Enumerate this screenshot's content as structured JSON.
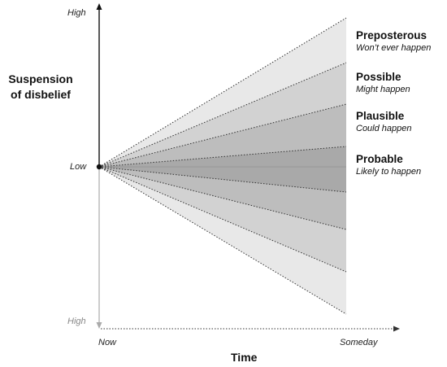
{
  "y_axis": {
    "label_line1": "Suspension",
    "label_line2": "of disbelief",
    "top_label": "High",
    "origin_label": "Low",
    "bottom_label": "High"
  },
  "x_axis": {
    "label": "Time",
    "start_label": "Now",
    "end_label": "Someday"
  },
  "categories": [
    {
      "title": "Preposterous",
      "subtitle": "Won’t ever happen",
      "fill": "#e8e8e8"
    },
    {
      "title": "Possible",
      "subtitle": "Might happen",
      "fill": "#d2d2d2"
    },
    {
      "title": "Plausible",
      "subtitle": "Could happen",
      "fill": "#bdbdbd"
    },
    {
      "title": "Probable",
      "subtitle": "Likely to happen",
      "fill": "#a9a9a9"
    }
  ],
  "colors": {
    "axis": "#111111",
    "axis_faded": "#aaaaaa",
    "cone_edge": "#333333"
  }
}
